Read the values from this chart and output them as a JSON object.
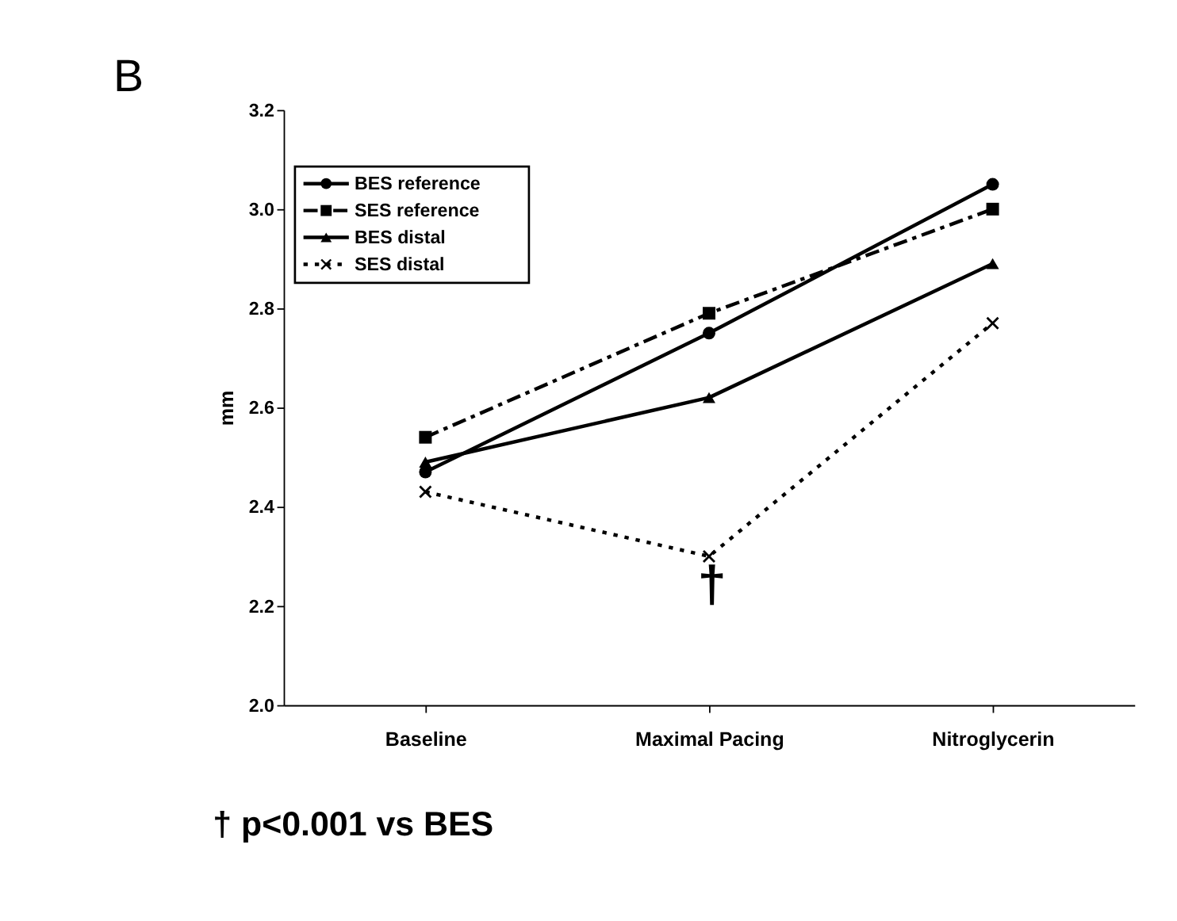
{
  "chart_data": {
    "type": "line",
    "title": "B",
    "ylabel": "mm",
    "categories": [
      "Baseline",
      "Maximal Pacing",
      "Nitroglycerin"
    ],
    "series": [
      {
        "name": "BES reference",
        "color": "#000000",
        "marker": "circle",
        "line_style": "solid",
        "values": [
          2.47,
          2.75,
          3.05
        ]
      },
      {
        "name": "SES reference",
        "color": "#000000",
        "marker": "square",
        "line_style": "dashed",
        "values": [
          2.54,
          2.79,
          3.0
        ]
      },
      {
        "name": "BES distal",
        "color": "#000000",
        "marker": "triangle",
        "line_style": "solid",
        "values": [
          2.49,
          2.62,
          2.89
        ]
      },
      {
        "name": "SES distal",
        "color": "#000000",
        "marker": "cross",
        "line_style": "dotted",
        "values": [
          2.43,
          2.3,
          2.77
        ]
      }
    ],
    "ylim": [
      2.0,
      3.2
    ],
    "yticks": [
      {
        "value": 2.0,
        "label": "2.0"
      },
      2.2,
      2.4,
      2.6,
      2.8,
      {
        "value": 3.0,
        "label": "3.0"
      },
      3.2
    ],
    "grid": false,
    "legend": "top left",
    "annotations": [
      "†",
      "† p<0.001 vs BES"
    ]
  }
}
